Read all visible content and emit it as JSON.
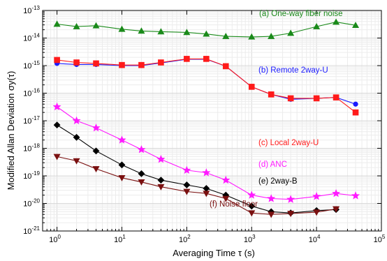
{
  "chart_data": {
    "type": "line",
    "title": "",
    "xlabel": "Averaging Time τ (s)",
    "ylabel": "Modified Allan Deviation σy(τ)",
    "xscale": "log",
    "yscale": "log",
    "xlim": [
      0.6,
      100000
    ],
    "ylim": [
      1e-21,
      1e-13
    ],
    "x_tick_labels": [
      {
        "base": "10",
        "exp": "0"
      },
      {
        "base": "10",
        "exp": "1"
      },
      {
        "base": "10",
        "exp": "2"
      },
      {
        "base": "10",
        "exp": "3"
      },
      {
        "base": "10",
        "exp": "4"
      },
      {
        "base": "10",
        "exp": "5"
      }
    ],
    "y_tick_labels": [
      {
        "base": "10",
        "exp": "-13"
      },
      {
        "base": "10",
        "exp": "-14"
      },
      {
        "base": "10",
        "exp": "-15"
      },
      {
        "base": "10",
        "exp": "-16"
      },
      {
        "base": "10",
        "exp": "-17"
      },
      {
        "base": "10",
        "exp": "-18"
      },
      {
        "base": "10",
        "exp": "-19"
      },
      {
        "base": "10",
        "exp": "-20"
      },
      {
        "base": "10",
        "exp": "-21"
      }
    ],
    "grid": true,
    "series": [
      {
        "label": "(a) One-way fiber noise",
        "color": "#1a8a1a",
        "marker": "triangle-up",
        "x": [
          1,
          2,
          4,
          10,
          20,
          40,
          100,
          200,
          400,
          1000,
          2000,
          4000,
          10000,
          20000,
          40000
        ],
        "y": [
          3.2e-14,
          2.6e-14,
          2.8e-14,
          2.1e-14,
          1.8e-14,
          1.7e-14,
          1.6e-14,
          1.4e-14,
          1.15e-14,
          1.1e-14,
          1.15e-14,
          1.5e-14,
          2.6e-14,
          3.8e-14,
          2.9e-14
        ]
      },
      {
        "label": "(b) Remote 2way-U",
        "color": "#1a1aff",
        "marker": "circle",
        "x": [
          1,
          2,
          4,
          10,
          20,
          40,
          100,
          200,
          400,
          1000,
          2000,
          4000,
          10000,
          20000,
          40000
        ],
        "y": [
          1.2e-15,
          1.1e-15,
          1.1e-15,
          1e-15,
          1e-15,
          1.25e-15,
          1.7e-15,
          1.7e-15,
          9.5e-16,
          1.7e-16,
          9e-17,
          6e-17,
          6.5e-17,
          7e-17,
          4e-17
        ]
      },
      {
        "label": "(c) Local 2way-U",
        "color": "#ff1a1a",
        "marker": "square",
        "x": [
          1,
          2,
          4,
          10,
          20,
          40,
          100,
          200,
          400,
          1000,
          2000,
          4000,
          10000,
          20000,
          40000
        ],
        "y": [
          1.6e-15,
          1.3e-15,
          1.2e-15,
          1.05e-15,
          1.05e-15,
          1.3e-15,
          1.75e-15,
          1.75e-15,
          9.5e-16,
          1.7e-16,
          9e-17,
          6.5e-17,
          6.5e-17,
          7e-17,
          2e-17
        ]
      },
      {
        "label": "(d) ANC",
        "color": "#ff1aff",
        "marker": "star",
        "x": [
          1,
          2,
          4,
          10,
          20,
          40,
          100,
          200,
          400,
          1000,
          2000,
          4000,
          10000,
          20000,
          40000
        ],
        "y": [
          3.2e-17,
          1e-17,
          5.5e-18,
          2e-18,
          9e-19,
          4e-19,
          1.6e-19,
          1.3e-19,
          7e-20,
          2e-20,
          1.5e-20,
          1.4e-20,
          1.8e-20,
          2.3e-20,
          1.9e-20
        ]
      },
      {
        "label": "(e) 2way-B",
        "color": "#000000",
        "marker": "diamond",
        "x": [
          1,
          2,
          4,
          10,
          20,
          40,
          100,
          200,
          400,
          1000,
          2000,
          4000,
          10000,
          20000
        ],
        "y": [
          7e-18,
          2.5e-18,
          8e-19,
          2.5e-19,
          1.2e-19,
          7e-20,
          4.7e-20,
          3.5e-20,
          2e-20,
          8e-21,
          5e-21,
          4.5e-21,
          5.5e-21,
          6e-21
        ]
      },
      {
        "label": "(f) Noise floor",
        "color": "#7a1010",
        "marker": "triangle-down",
        "x": [
          1,
          2,
          4,
          10,
          20,
          40,
          100,
          200,
          400,
          1000,
          2000,
          4000,
          10000,
          20000
        ],
        "y": [
          5e-19,
          3.5e-19,
          1.8e-19,
          8.5e-20,
          6e-20,
          4e-20,
          2.7e-20,
          2.3e-20,
          1.5e-20,
          4.5e-21,
          4e-21,
          4.3e-21,
          4.8e-21,
          6.3e-21
        ]
      }
    ]
  }
}
